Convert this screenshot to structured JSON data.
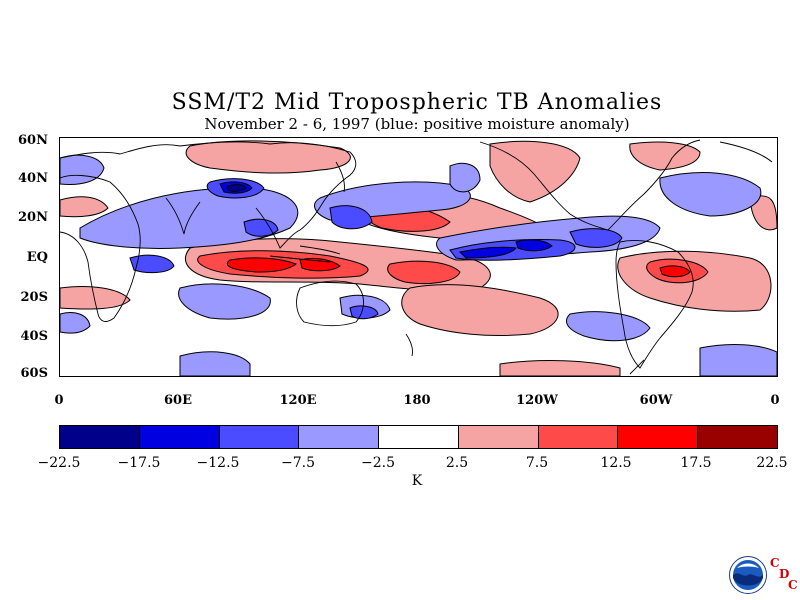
{
  "title": "SSM/T2 Mid Tropospheric TB Anomalies",
  "subtitle": "November 2 - 6, 1997 (blue: positive moisture anomaly)",
  "lat_labels": [
    "60N",
    "40N",
    "20N",
    "EQ",
    "20S",
    "40S",
    "60S"
  ],
  "lon_labels": [
    "0",
    "60E",
    "120E",
    "180",
    "120W",
    "60W",
    "0"
  ],
  "colorbar": {
    "unit": "K",
    "tick_labels": [
      "-22.5",
      "-17.5",
      "-12.5",
      "-7.5",
      "-2.5",
      "2.5",
      "7.5",
      "12.5",
      "17.5",
      "22.5"
    ],
    "colors": [
      "#00008b",
      "#0000e0",
      "#4b4bff",
      "#9999ff",
      "#ffffff",
      "#f5a3a3",
      "#ff4a4a",
      "#ff0000",
      "#990000"
    ]
  },
  "logo": {
    "text": "NOAA",
    "letters": [
      "C",
      "D",
      "C"
    ]
  }
}
